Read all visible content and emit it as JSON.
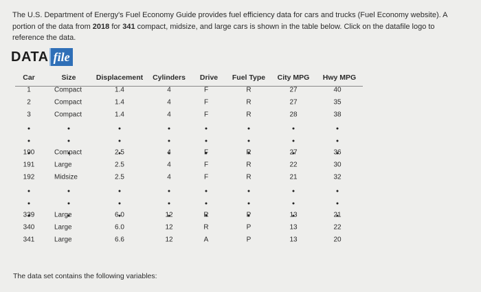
{
  "intro": [
    "The U.S. Department of Energy's Fuel Economy Guide provides fuel efficiency data for cars and trucks (Fuel Economy website). A portion of the data from ",
    "2018",
    " for ",
    "341",
    " compact, midsize, and large cars is shown in the table below. Click on the datafile logo to reference the data."
  ],
  "logo": {
    "data": "DATA",
    "file": "file"
  },
  "table": {
    "headers": [
      "Car",
      "Size",
      "Displacement",
      "Cylinders",
      "Drive",
      "Fuel Type",
      "City MPG",
      "Hwy MPG"
    ],
    "row_groups": [
      [
        [
          "1",
          "Compact",
          "1.4",
          "4",
          "F",
          "R",
          "27",
          "40"
        ],
        [
          "2",
          "Compact",
          "1.4",
          "4",
          "F",
          "R",
          "27",
          "35"
        ],
        [
          "3",
          "Compact",
          "1.4",
          "4",
          "F",
          "R",
          "28",
          "38"
        ]
      ],
      [
        [
          "190",
          "Compact",
          "2.5",
          "4",
          "F",
          "R",
          "27",
          "36"
        ],
        [
          "191",
          "Large",
          "2.5",
          "4",
          "F",
          "R",
          "22",
          "30"
        ],
        [
          "192",
          "Midsize",
          "2.5",
          "4",
          "F",
          "R",
          "21",
          "32"
        ]
      ],
      [
        [
          "339",
          "Large",
          "6.0",
          "12",
          "R",
          "P",
          "13",
          "21"
        ],
        [
          "340",
          "Large",
          "6.0",
          "12",
          "R",
          "P",
          "13",
          "22"
        ],
        [
          "341",
          "Large",
          "6.6",
          "12",
          "A",
          "P",
          "13",
          "20"
        ]
      ]
    ]
  },
  "footer": "The data set contains the following variables:"
}
